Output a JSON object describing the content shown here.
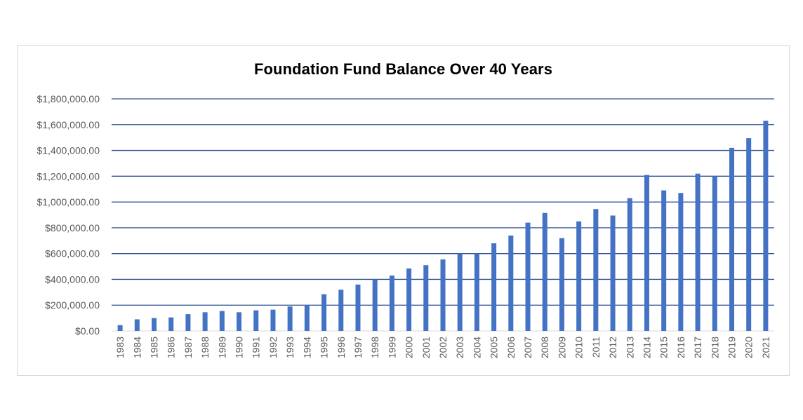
{
  "chart_data": {
    "type": "bar",
    "title": "Foundation Fund Balance Over 40 Years",
    "xlabel": "",
    "ylabel": "",
    "ylim": [
      0,
      1800000
    ],
    "yticks": [
      0,
      200000,
      400000,
      600000,
      800000,
      1000000,
      1200000,
      1400000,
      1600000,
      1800000
    ],
    "ytick_labels": [
      "$0.00",
      "$200,000.00",
      "$400,000.00",
      "$600,000.00",
      "$800,000.00",
      "$1,000,000.00",
      "$1,200,000.00",
      "$1,400,000.00",
      "$1,600,000.00",
      "$1,800,000.00"
    ],
    "grid": true,
    "legend": "none",
    "bar_color": "#4472c4",
    "gridline_color": "#2f5597",
    "categories": [
      "1983",
      "1984",
      "1985",
      "1986",
      "1987",
      "1988",
      "1989",
      "1990",
      "1991",
      "1992",
      "1993",
      "1994",
      "1995",
      "1996",
      "1997",
      "1998",
      "1999",
      "2000",
      "2001",
      "2002",
      "2003",
      "2004",
      "2005",
      "2006",
      "2007",
      "2008",
      "2009",
      "2010",
      "2011",
      "2012",
      "2013",
      "2014",
      "2015",
      "2016",
      "2017",
      "2018",
      "2019",
      "2020",
      "2021"
    ],
    "values": [
      45000,
      90000,
      100000,
      105000,
      130000,
      145000,
      155000,
      145000,
      160000,
      165000,
      190000,
      200000,
      285000,
      320000,
      360000,
      400000,
      430000,
      485000,
      510000,
      555000,
      600000,
      600000,
      680000,
      740000,
      840000,
      915000,
      720000,
      850000,
      945000,
      895000,
      1030000,
      1210000,
      1090000,
      1070000,
      1220000,
      1200000,
      1420000,
      1495000,
      1630000
    ]
  }
}
